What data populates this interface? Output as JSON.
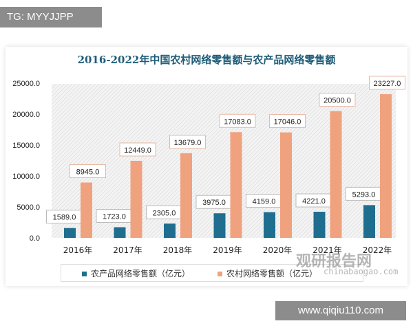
{
  "watermark_top": "TG: MYYJJPP",
  "watermark_bottom": "www.qiqiu110.com",
  "logo_watermark": {
    "cn": "观研报告网",
    "en": "chinabaogao.com"
  },
  "chart_data": {
    "type": "bar",
    "title": "2016-2022年中国农村网络零售额与农产品网络零售额",
    "categories": [
      "2016年",
      "2017年",
      "2018年",
      "2019年",
      "2020年",
      "2021年",
      "2022年"
    ],
    "series": [
      {
        "name": "农产品网络零售额（亿元）",
        "color": "#1f6e8f",
        "values": [
          1589.0,
          1723.0,
          2305.0,
          3975.0,
          4159.0,
          4221.0,
          5293.0
        ]
      },
      {
        "name": "农村网络零售额（亿元）",
        "color": "#f0a27e",
        "values": [
          8945.0,
          12449.0,
          13679.0,
          17083.0,
          17046.0,
          20500.0,
          23227.0
        ]
      }
    ],
    "yticks": [
      "0.0",
      "5000.0",
      "10000.0",
      "15000.0",
      "20000.0",
      "25000.0"
    ],
    "ylim": [
      0,
      25000
    ],
    "legend": "bottom",
    "data_labels": true,
    "grid": false
  }
}
